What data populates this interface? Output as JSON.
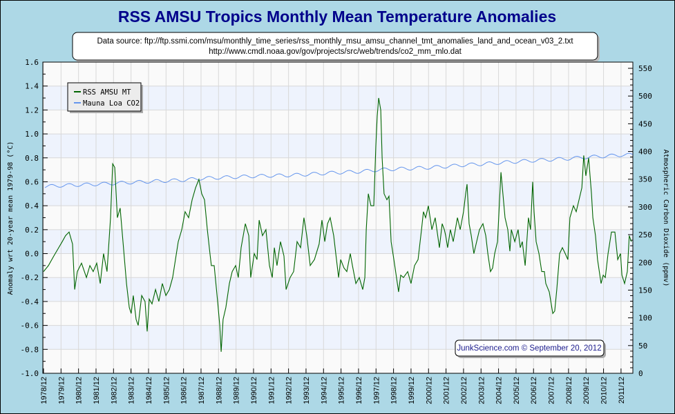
{
  "chart_data": {
    "type": "line",
    "title": "RSS AMSU Tropics Monthly Mean Temperature Anomalies",
    "source_lines": [
      "Data source: ftp://ftp.ssmi.com/msu/monthly_time_series/rss_monthly_msu_amsu_channel_tmt_anomalies_land_and_ocean_v03_2.txt",
      "http://www.cmdl.noaa.gov/gov/projects/src/web/trends/co2_mm_mlo.dat"
    ],
    "credit": "JunkScience.com © September 20, 2012",
    "ylabel": "Anomaly wrt 20-year mean 1979-98 (°C)",
    "y2label": "Atmospheric Carbon Dioxide (ppmv)",
    "ylim": [
      -1.0,
      1.6
    ],
    "y2lim": [
      0,
      550
    ],
    "xlim": [
      1978.92,
      2012.6
    ],
    "yticks": [
      "1.6",
      "1.4",
      "1.2",
      "1.0",
      "0.8",
      "0.6",
      "0.4",
      "0.2",
      "0.0",
      "-0.2",
      "-0.4",
      "-0.6",
      "-0.8",
      "-1.0"
    ],
    "y2ticks": [
      "550",
      "500",
      "450",
      "400",
      "350",
      "300",
      "250",
      "200",
      "150",
      "100",
      "50",
      "0"
    ],
    "xticks": [
      "1978/12",
      "1979/12",
      "1980/12",
      "1981/12",
      "1982/12",
      "1983/12",
      "1984/12",
      "1985/12",
      "1986/12",
      "1987/12",
      "1988/12",
      "1989/12",
      "1990/12",
      "1991/12",
      "1992/12",
      "1993/12",
      "1994/12",
      "1995/12",
      "1996/12",
      "1997/12",
      "1998/12",
      "1999/12",
      "2000/12",
      "2001/12",
      "2002/12",
      "2003/12",
      "2004/12",
      "2005/12",
      "2006/12",
      "2007/12",
      "2008/12",
      "2009/12",
      "2010/12",
      "2011/12"
    ],
    "grid": true,
    "legend": {
      "position": "top-left",
      "entries": [
        "RSS AMSU MT",
        "Mauna Loa CO2"
      ]
    },
    "colors": {
      "rss": "#006400",
      "co2": "#6495ed",
      "title": "#00008b",
      "background": "#add8e6",
      "band": "#eef3fd"
    },
    "series": [
      {
        "name": "RSS AMSU MT",
        "axis": "left",
        "x": [
          1978.92,
          1979.2,
          1979.51,
          1979.79,
          1979.99,
          1980.18,
          1980.38,
          1980.58,
          1980.7,
          1980.85,
          1981.09,
          1981.37,
          1981.57,
          1981.76,
          1981.96,
          1982.16,
          1982.35,
          1982.55,
          1982.75,
          1982.87,
          1982.99,
          1983.14,
          1983.3,
          1983.46,
          1983.66,
          1983.82,
          1983.93,
          1984.05,
          1984.21,
          1984.33,
          1984.53,
          1984.72,
          1984.84,
          1984.96,
          1985.12,
          1985.32,
          1985.51,
          1985.71,
          1985.91,
          1986.11,
          1986.3,
          1986.62,
          1986.82,
          1987.01,
          1987.21,
          1987.41,
          1987.61,
          1987.8,
          1987.96,
          1988.12,
          1988.28,
          1988.43,
          1988.51,
          1988.67,
          1988.87,
          1988.99,
          1989.07,
          1989.18,
          1989.34,
          1989.54,
          1989.7,
          1989.9,
          1990.05,
          1990.21,
          1990.45,
          1990.65,
          1990.76,
          1990.96,
          1991.12,
          1991.24,
          1991.43,
          1991.63,
          1991.83,
          1991.99,
          1992.11,
          1992.26,
          1992.46,
          1992.66,
          1992.78,
          1993.01,
          1993.21,
          1993.41,
          1993.61,
          1993.8,
          1993.96,
          1994.16,
          1994.4,
          1994.67,
          1994.83,
          1994.99,
          1995.15,
          1995.3,
          1995.5,
          1995.62,
          1995.78,
          1995.9,
          1996.09,
          1996.25,
          1996.45,
          1996.57,
          1996.77,
          1996.96,
          1997.16,
          1997.28,
          1997.36,
          1997.48,
          1997.63,
          1997.79,
          1997.91,
          1997.99,
          1998.07,
          1998.19,
          1998.27,
          1998.38,
          1998.54,
          1998.66,
          1998.78,
          1998.94,
          1999.09,
          1999.21,
          1999.33,
          1999.49,
          1999.73,
          1999.92,
          2000.12,
          2000.32,
          2000.52,
          2000.63,
          2000.75,
          2000.91,
          2001.11,
          2001.3,
          2001.54,
          2001.7,
          2001.82,
          2001.9,
          2002.01,
          2002.17,
          2002.33,
          2002.57,
          2002.73,
          2002.92,
          2003.04,
          2003.12,
          2003.24,
          2003.36,
          2003.51,
          2003.67,
          2003.83,
          2004.03,
          2004.19,
          2004.31,
          2004.46,
          2004.58,
          2004.7,
          2004.86,
          2004.98,
          2005.06,
          2005.17,
          2005.29,
          2005.45,
          2005.57,
          2005.65,
          2005.85,
          2006.04,
          2006.16,
          2006.28,
          2006.44,
          2006.63,
          2006.75,
          2006.87,
          2006.95,
          2007.07,
          2007.23,
          2007.39,
          2007.54,
          2007.62,
          2007.82,
          2008.02,
          2008.13,
          2008.25,
          2008.41,
          2008.57,
          2008.73,
          2008.88,
          2009.0,
          2009.2,
          2009.36,
          2009.52,
          2009.68,
          2009.79,
          2009.91,
          2010.07,
          2010.23,
          2010.31,
          2010.46,
          2010.58,
          2010.78,
          2010.9,
          2011.02,
          2011.18,
          2011.37,
          2011.57,
          2011.73,
          2011.89,
          2011.97,
          2012.12,
          2012.28,
          2012.39,
          2012.51
        ],
        "y": [
          -0.15,
          -0.1,
          -0.02,
          0.05,
          0.1,
          0.15,
          0.18,
          0.08,
          -0.3,
          -0.15,
          -0.08,
          -0.2,
          -0.1,
          -0.15,
          -0.08,
          -0.25,
          0.0,
          -0.15,
          0.3,
          0.75,
          0.72,
          0.3,
          0.38,
          0.1,
          -0.25,
          -0.45,
          -0.5,
          -0.35,
          -0.55,
          -0.6,
          -0.35,
          -0.4,
          -0.65,
          -0.38,
          -0.42,
          -0.3,
          -0.4,
          -0.25,
          -0.35,
          -0.3,
          -0.2,
          0.1,
          0.2,
          0.35,
          0.3,
          0.45,
          0.55,
          0.62,
          0.5,
          0.45,
          0.2,
          0.0,
          -0.1,
          -0.1,
          -0.4,
          -0.6,
          -0.82,
          -0.55,
          -0.45,
          -0.25,
          -0.15,
          -0.1,
          -0.2,
          0.05,
          0.25,
          0.15,
          -0.2,
          0.0,
          -0.05,
          0.28,
          0.15,
          0.2,
          -0.1,
          -0.2,
          0.05,
          -0.1,
          0.1,
          -0.02,
          -0.3,
          -0.2,
          -0.15,
          0.1,
          0.05,
          0.3,
          0.15,
          -0.1,
          -0.05,
          0.08,
          0.28,
          0.1,
          0.25,
          0.3,
          0.15,
          0.0,
          -0.2,
          -0.05,
          -0.12,
          -0.15,
          0.0,
          -0.1,
          -0.25,
          -0.2,
          -0.3,
          -0.2,
          0.2,
          0.5,
          0.4,
          0.4,
          0.9,
          1.15,
          1.3,
          1.2,
          0.8,
          0.5,
          0.45,
          0.48,
          0.1,
          -0.05,
          -0.2,
          -0.32,
          -0.18,
          -0.2,
          -0.15,
          -0.25,
          -0.1,
          -0.05,
          0.2,
          0.35,
          0.3,
          0.4,
          0.2,
          0.3,
          0.05,
          0.25,
          0.2,
          0.15,
          0.05,
          0.2,
          0.1,
          0.3,
          0.2,
          0.35,
          0.5,
          0.58,
          0.25,
          0.15,
          0.0,
          0.1,
          0.2,
          0.25,
          0.15,
          0.0,
          -0.15,
          -0.12,
          0.0,
          0.1,
          0.45,
          0.68,
          0.5,
          0.3,
          0.2,
          0.02,
          0.2,
          0.1,
          0.2,
          0.05,
          0.1,
          -0.1,
          0.3,
          0.2,
          0.6,
          0.35,
          0.1,
          0.0,
          -0.15,
          -0.15,
          -0.25,
          -0.32,
          -0.5,
          -0.48,
          -0.3,
          0.0,
          0.05,
          0.0,
          -0.05,
          0.3,
          0.4,
          0.35,
          0.45,
          0.55,
          0.82,
          0.65,
          0.8,
          0.5,
          0.3,
          0.15,
          -0.05,
          -0.25,
          -0.18,
          -0.2,
          0.0,
          0.18,
          0.18,
          -0.05,
          0.0,
          -0.18,
          -0.25,
          -0.15,
          0.15,
          0.1
        ]
      },
      {
        "name": "Mauna Loa CO2",
        "axis": "right",
        "annual_mean_years": [
          1979,
          1980,
          1981,
          1982,
          1983,
          1984,
          1985,
          1986,
          1987,
          1988,
          1989,
          1990,
          1991,
          1992,
          1993,
          1994,
          1995,
          1996,
          1997,
          1998,
          1999,
          2000,
          2001,
          2002,
          2003,
          2004,
          2005,
          2006,
          2007,
          2008,
          2009,
          2010,
          2011,
          2012
        ],
        "annual_mean_ppmv": [
          336.8,
          338.7,
          339.9,
          341.1,
          342.8,
          344.4,
          345.9,
          347.2,
          348.9,
          351.5,
          352.9,
          354.2,
          355.6,
          356.4,
          357.1,
          358.8,
          360.8,
          362.6,
          363.7,
          366.7,
          368.4,
          369.6,
          371.1,
          373.2,
          375.8,
          377.5,
          379.8,
          381.9,
          383.8,
          385.6,
          387.4,
          389.9,
          391.6,
          393.8
        ],
        "seasonal_amplitude_ppmv": 3
      }
    ]
  }
}
